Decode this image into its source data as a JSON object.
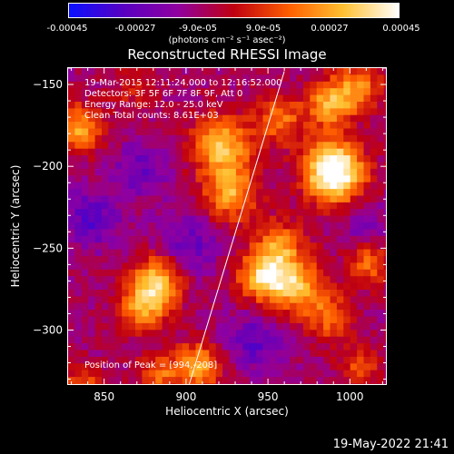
{
  "colorbar": {
    "tick_labels": [
      "-0.00045",
      "-0.00027",
      "-9.0e-05",
      "9.0e-05",
      "0.00027",
      "0.00045"
    ],
    "units": "(photons cm⁻² s⁻¹ asec⁻²)",
    "range": [
      -0.00045,
      0.00045
    ],
    "colors": [
      "#0a10ff",
      "#5a00c0",
      "#9000a0",
      "#d00000",
      "#ff7000",
      "#ffff60",
      "#ffffff"
    ]
  },
  "chart_data": {
    "type": "heatmap",
    "title": "Reconstructed RHESSI Image",
    "xlabel": "Heliocentric X (arcsec)",
    "ylabel": "Heliocentric Y (arcsec)",
    "xlim": [
      828,
      1022
    ],
    "ylim": [
      -333,
      -140
    ],
    "x_ticks": [
      850,
      900,
      950,
      1000
    ],
    "y_ticks": [
      -150,
      -200,
      -250,
      -300
    ],
    "x_tick_labels": [
      "850",
      "900",
      "950",
      "1000"
    ],
    "y_tick_labels": [
      "−150",
      "−200",
      "−250",
      "−300"
    ],
    "info_lines": [
      "19-Mar-2015 12:11:24.000 to 12:16:52.000",
      "Detectors: 3F 5F 6F 7F 8F 9F, Att 0",
      "Energy Range: 12.0 - 25.0 keV",
      "Clean     Total counts: 8.61E+03"
    ],
    "peak_label": "Position of Peak = [994,-208]",
    "peak_position": [
      994,
      -208
    ],
    "limb_line": [
      [
        902,
        -333
      ],
      [
        960,
        -142
      ]
    ],
    "sources": [
      {
        "x": 990,
        "y": -205,
        "amp": 0.00045,
        "r": 13
      },
      {
        "x": 985,
        "y": -160,
        "amp": 0.00034,
        "r": 10
      },
      {
        "x": 1003,
        "y": -150,
        "amp": 0.0003,
        "r": 10
      },
      {
        "x": 985,
        "y": -195,
        "amp": 0.00028,
        "r": 11
      },
      {
        "x": 920,
        "y": -185,
        "amp": 0.00038,
        "r": 13
      },
      {
        "x": 925,
        "y": -215,
        "amp": 0.00034,
        "r": 12
      },
      {
        "x": 955,
        "y": -170,
        "amp": 0.00026,
        "r": 10
      },
      {
        "x": 945,
        "y": -265,
        "amp": 0.0004,
        "r": 11
      },
      {
        "x": 965,
        "y": -270,
        "amp": 0.00036,
        "r": 12
      },
      {
        "x": 955,
        "y": -245,
        "amp": 0.00026,
        "r": 10
      },
      {
        "x": 880,
        "y": -268,
        "amp": 0.0004,
        "r": 11
      },
      {
        "x": 872,
        "y": -285,
        "amp": 0.0003,
        "r": 10
      },
      {
        "x": 832,
        "y": -175,
        "amp": 0.00036,
        "r": 10
      },
      {
        "x": 905,
        "y": -320,
        "amp": 0.00036,
        "r": 10
      },
      {
        "x": 880,
        "y": -325,
        "amp": 0.00026,
        "r": 8
      },
      {
        "x": 1010,
        "y": -258,
        "amp": 0.00026,
        "r": 9
      },
      {
        "x": 985,
        "y": -290,
        "amp": 0.00024,
        "r": 10
      },
      {
        "x": 1005,
        "y": -320,
        "amp": 0.0002,
        "r": 9
      },
      {
        "x": 835,
        "y": -330,
        "amp": 0.00022,
        "r": 8
      },
      {
        "x": 865,
        "y": -150,
        "amp": 0.00012,
        "r": 10
      },
      {
        "x": 840,
        "y": -230,
        "amp": -0.0002,
        "r": 12
      },
      {
        "x": 900,
        "y": -245,
        "amp": -0.00016,
        "r": 14
      },
      {
        "x": 870,
        "y": -200,
        "amp": -0.00015,
        "r": 12
      },
      {
        "x": 940,
        "y": -305,
        "amp": -0.00018,
        "r": 12
      },
      {
        "x": 1005,
        "y": -230,
        "amp": -0.00014,
        "r": 10
      }
    ]
  },
  "footer": {
    "date": "19-May-2022 21:41"
  }
}
